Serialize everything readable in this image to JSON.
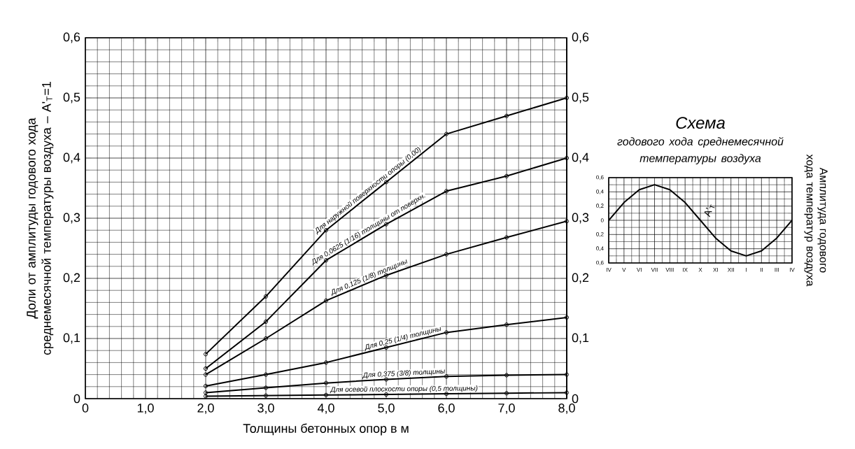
{
  "chart_data": [
    {
      "type": "line",
      "xlabel": "Толщины бетонных опор в м",
      "ylabel": "Доли от амплитуды годового хода среднемесячной температуры воздуха – A'$_{T}$=1",
      "x": [
        2,
        3,
        4,
        5,
        6,
        7,
        8
      ],
      "series": [
        {
          "name": "Для наружной поверхности опоры (0,00)",
          "color": "#000000",
          "values": [
            0.074,
            0.17,
            0.28,
            0.36,
            0.44,
            0.47,
            0.5
          ]
        },
        {
          "name": "Для 0,0625 (1/16) толщины от поверхн.",
          "color": "#000000",
          "values": [
            0.05,
            0.128,
            0.23,
            0.29,
            0.345,
            0.37,
            0.4
          ]
        },
        {
          "name": "Для 0,125 (1/8) толщины",
          "color": "#000000",
          "values": [
            0.04,
            0.1,
            0.163,
            0.205,
            0.24,
            0.268,
            0.295
          ]
        },
        {
          "name": "Для 0,25 (1/4) толщины",
          "color": "#000000",
          "values": [
            0.021,
            0.04,
            0.06,
            0.085,
            0.11,
            0.123,
            0.135
          ]
        },
        {
          "name": "Для 0,375 (3/8) толщины",
          "color": "#000000",
          "values": [
            0.01,
            0.018,
            0.026,
            0.032,
            0.037,
            0.039,
            0.04
          ]
        },
        {
          "name": "Для осевой плоскости опоры (0,5 толщины)",
          "color": "#000000",
          "values": [
            0.004,
            0.005,
            0.006,
            0.007,
            0.008,
            0.009,
            0.01
          ]
        }
      ],
      "xlim": [
        0,
        8
      ],
      "xticks": [
        0,
        {
          "value": 1,
          "label": "1,0"
        },
        {
          "value": 2,
          "label": "2,0"
        },
        {
          "value": 3,
          "label": "3,0"
        },
        {
          "value": 4,
          "label": "4,0"
        },
        {
          "value": 5,
          "label": "5,0"
        },
        {
          "value": 6,
          "label": "6,0"
        },
        {
          "value": 7,
          "label": "7,0"
        },
        {
          "value": 8,
          "label": "8,0"
        }
      ],
      "ylim": [
        0,
        0.6
      ],
      "yticks": [
        0,
        {
          "value": 0.1,
          "label": "0,1"
        },
        {
          "value": 0.2,
          "label": "0,2"
        },
        {
          "value": 0.3,
          "label": "0,3"
        },
        {
          "value": 0.4,
          "label": "0,4"
        },
        {
          "value": 0.5,
          "label": "0,5"
        },
        {
          "value": 0.6,
          "label": "0,6"
        }
      ],
      "y2lim": [
        0,
        0.6
      ],
      "y2ticks": [
        0,
        {
          "value": 0.1,
          "label": "0,1"
        },
        {
          "value": 0.2,
          "label": "0,2"
        },
        {
          "value": 0.3,
          "label": "0,3"
        },
        {
          "value": 0.4,
          "label": "0,4"
        },
        {
          "value": 0.5,
          "label": "0,5"
        },
        {
          "value": 0.6,
          "label": "0,6"
        }
      ],
      "grid": true,
      "marker": "circle",
      "line_style": "solid"
    },
    {
      "type": "line",
      "title": "Схема",
      "subtitle": "годового хода среднемесячной температуры воздуха",
      "ylabel": "Амплитуда годового хода температур воздуха",
      "categories": [
        "IV",
        "V",
        "VI",
        "VII",
        "VIII",
        "IX",
        "X",
        "XI",
        "XII",
        "I",
        "II",
        "III",
        "IV"
      ],
      "series": [
        {
          "color": "#000000",
          "values": [
            0,
            0.25,
            0.43,
            0.5,
            0.43,
            0.25,
            0,
            -0.25,
            -0.43,
            -0.5,
            -0.43,
            -0.25,
            0
          ]
        }
      ],
      "ylim": [
        -0.6,
        0.6
      ],
      "yticks": [
        {
          "value": -0.6,
          "label": "0,6"
        },
        {
          "value": -0.4,
          "label": "0,4"
        },
        {
          "value": -0.2,
          "label": "0,2"
        },
        0,
        {
          "value": 0.2,
          "label": "0,2"
        },
        {
          "value": 0.4,
          "label": "0,4"
        },
        {
          "value": 0.6,
          "label": "0,6"
        }
      ],
      "annotations": [
        "A'$_{T}$"
      ],
      "grid": true,
      "line_style": "solid"
    }
  ]
}
